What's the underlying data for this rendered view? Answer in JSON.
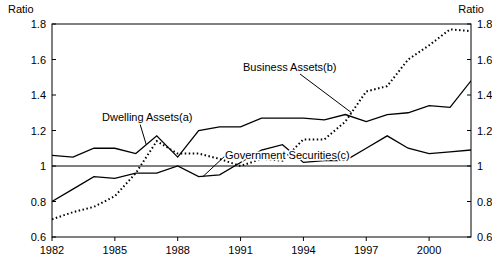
{
  "chart_data": {
    "type": "line",
    "ylabel": "Ratio",
    "y2label": "Ratio",
    "x": [
      1982,
      1983,
      1984,
      1985,
      1986,
      1987,
      1988,
      1989,
      1990,
      1991,
      1992,
      1993,
      1994,
      1995,
      1996,
      1997,
      1998,
      1999,
      2000,
      2001,
      2002
    ],
    "series": [
      {
        "name": "Dwelling Assets(a)",
        "color": "#000000",
        "line_style": "solid",
        "values": [
          1.06,
          1.05,
          1.1,
          1.1,
          1.07,
          1.17,
          1.05,
          1.2,
          1.22,
          1.22,
          1.27,
          1.27,
          1.27,
          1.26,
          1.29,
          1.25,
          1.29,
          1.3,
          1.34,
          1.33,
          1.48
        ]
      },
      {
        "name": "Business Assets(b)",
        "color": "#000000",
        "line_style": "dotted",
        "values": [
          0.7,
          0.74,
          0.77,
          0.83,
          0.96,
          1.14,
          1.07,
          1.07,
          1.04,
          1.0,
          1.04,
          1.03,
          1.15,
          1.15,
          1.25,
          1.42,
          1.45,
          1.6,
          1.68,
          1.77,
          1.76
        ]
      },
      {
        "name": "Government Securities(c)",
        "color": "#000000",
        "line_style": "solid",
        "values": [
          0.8,
          0.87,
          0.94,
          0.93,
          0.96,
          0.96,
          1.0,
          0.94,
          0.95,
          1.02,
          1.09,
          1.12,
          1.02,
          1.03,
          1.03,
          1.1,
          1.17,
          1.1,
          1.07,
          1.08,
          1.09
        ]
      }
    ],
    "annotations": [
      {
        "text": "Dwelling Assets(a)",
        "x": 1986.5,
        "y": 1.12
      },
      {
        "text": "Business Assets(b)",
        "x": 1996.3,
        "y": 1.3
      },
      {
        "text": "Government Securities(c)",
        "x": 1989.2,
        "y": 0.94
      }
    ],
    "reference_line": 1,
    "xlim": [
      1982,
      2002
    ],
    "xticks": [
      1982,
      1985,
      1988,
      1991,
      1994,
      1997,
      2000
    ],
    "ylim": [
      0.6,
      1.8
    ],
    "yticks": [
      0.6,
      0.8,
      1,
      1.2,
      1.4,
      1.6,
      1.8
    ],
    "y2lim": [
      0.6,
      1.8
    ],
    "y2ticks": [
      0.6,
      0.8,
      1,
      1.2,
      1.4,
      1.6,
      1.8
    ],
    "grid": false,
    "legend": "none"
  }
}
